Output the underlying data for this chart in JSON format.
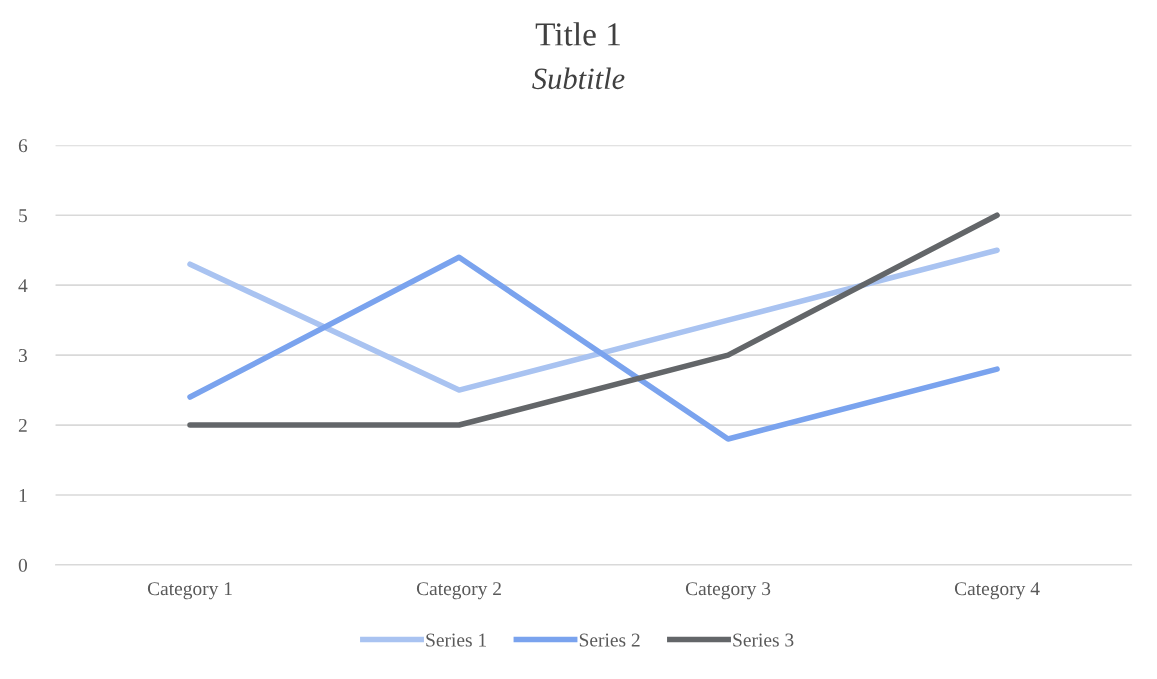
{
  "chart_data": {
    "type": "line",
    "title": "Title 1",
    "subtitle": "Subtitle",
    "categories": [
      "Category 1",
      "Category 2",
      "Category 3",
      "Category 4"
    ],
    "series": [
      {
        "name": "Series 1",
        "color": "#a9c3f1",
        "values": [
          4.3,
          2.5,
          3.5,
          4.5
        ]
      },
      {
        "name": "Series 2",
        "color": "#7aa3ee",
        "values": [
          2.4,
          4.4,
          1.8,
          2.8
        ]
      },
      {
        "name": "Series 3",
        "color": "#636669",
        "values": [
          2,
          2,
          3,
          5
        ]
      }
    ],
    "ylim": [
      0,
      6
    ],
    "yticks": [
      0,
      1,
      2,
      3,
      4,
      5,
      6
    ],
    "grid": "y",
    "legend": "bottom",
    "marker": "none",
    "line_style": "solid"
  }
}
